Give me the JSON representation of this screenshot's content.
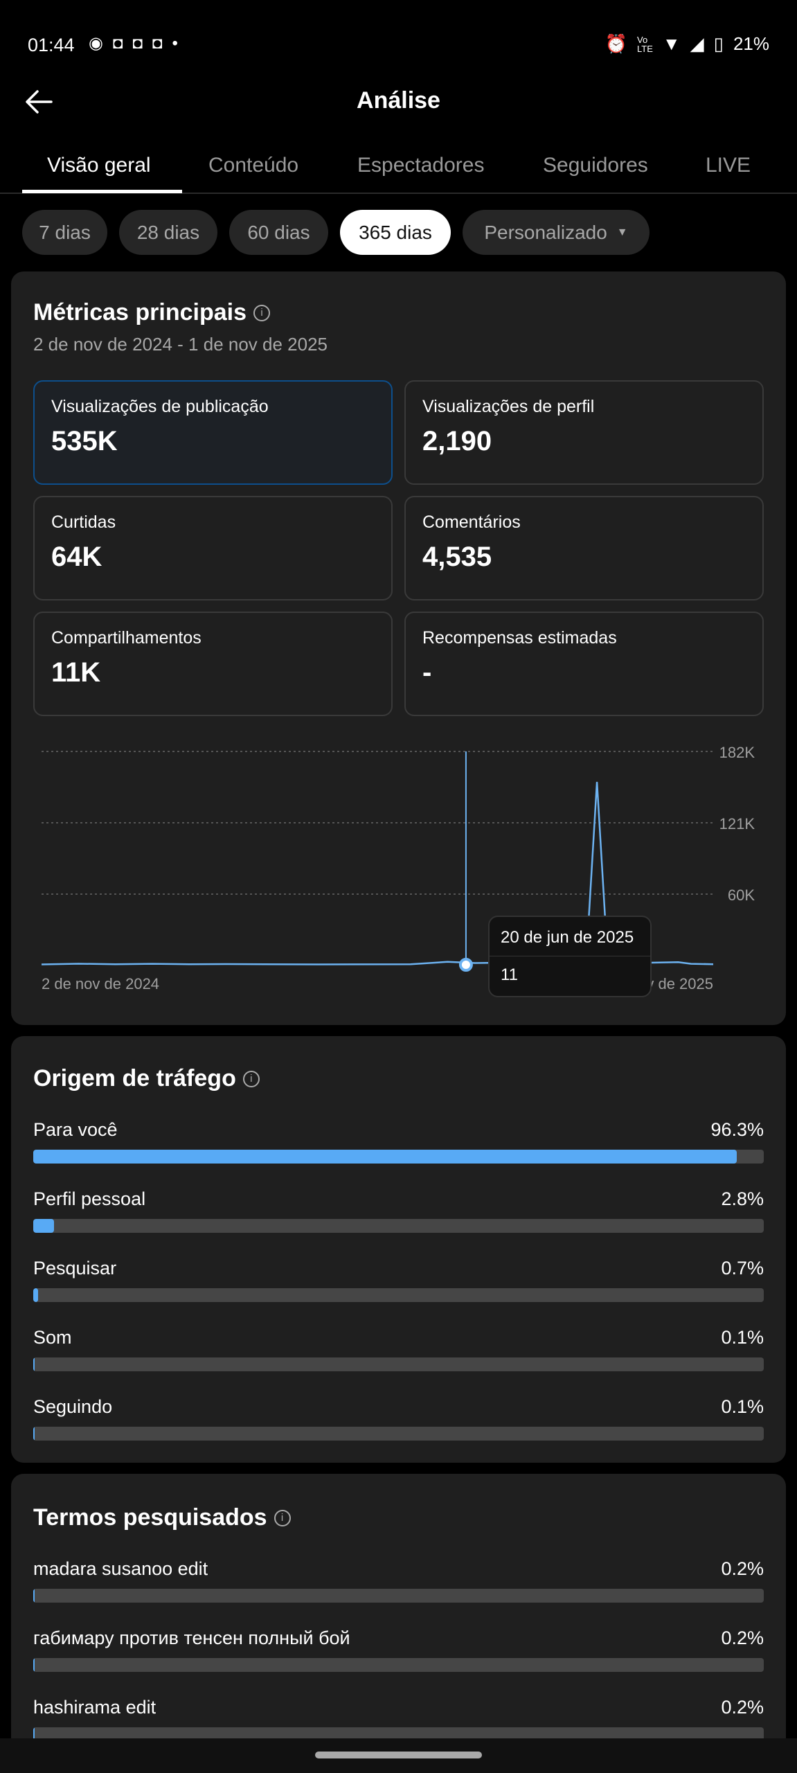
{
  "status_bar": {
    "time": "01:44",
    "battery": "21%",
    "left_icons": [
      "messenger-icon",
      "discord-icon",
      "discord-icon",
      "discord-icon",
      "dot-icon"
    ],
    "right_icons": [
      "alarm-icon",
      "volte-icon",
      "wifi-icon",
      "signal-icon",
      "battery-icon"
    ]
  },
  "header": {
    "title": "Análise",
    "back_icon": "arrow-left-icon"
  },
  "tabs": [
    {
      "label": "Visão geral",
      "active": true
    },
    {
      "label": "Conteúdo"
    },
    {
      "label": "Espectadores"
    },
    {
      "label": "Seguidores"
    },
    {
      "label": "LIVE"
    }
  ],
  "ranges": [
    {
      "label": "7 dias"
    },
    {
      "label": "28 dias"
    },
    {
      "label": "60 dias"
    },
    {
      "label": "365 dias",
      "selected": true
    },
    {
      "label": "Personalizado",
      "dropdown": true
    }
  ],
  "key_metrics": {
    "title": "Métricas principais",
    "date_range": "2 de nov de 2024 - 1 de nov de 2025",
    "items": [
      {
        "label": "Visualizações de publicação",
        "value": "535K",
        "selected": true
      },
      {
        "label": "Visualizações de perfil",
        "value": "2,190"
      },
      {
        "label": "Curtidas",
        "value": "64K"
      },
      {
        "label": "Comentários",
        "value": "4,535"
      },
      {
        "label": "Compartilhamentos",
        "value": "11K"
      },
      {
        "label": "Recompensas estimadas",
        "value": "-"
      }
    ]
  },
  "chart_data": {
    "type": "line",
    "y_ticks": [
      "182K",
      "121K",
      "60K"
    ],
    "ylim": [
      0,
      182000
    ],
    "x_labels": [
      "2 de nov de 2024",
      "1 de nov de 2025"
    ],
    "x_label_visible_end": "de 2025",
    "grid": "dashed horizontal",
    "series_color": "#6db3f2",
    "points": [
      [
        0,
        300
      ],
      [
        20,
        900
      ],
      [
        40,
        500
      ],
      [
        60,
        800
      ],
      [
        80,
        400
      ],
      [
        100,
        600
      ],
      [
        150,
        300
      ],
      [
        200,
        400
      ],
      [
        220,
        2500
      ],
      [
        235,
        1500
      ],
      [
        250,
        1800
      ],
      [
        265,
        300
      ],
      [
        275,
        200
      ],
      [
        290,
        400
      ],
      [
        296,
        25000
      ],
      [
        301,
        156000
      ],
      [
        306,
        25000
      ],
      [
        312,
        2000
      ],
      [
        330,
        1800
      ],
      [
        345,
        2200
      ],
      [
        352,
        800
      ],
      [
        364,
        500
      ]
    ],
    "tooltip": {
      "date": "20 de jun de 2025",
      "value": "11",
      "day_index": 230
    }
  },
  "traffic": {
    "title": "Origem de tráfego",
    "items": [
      {
        "label": "Para você",
        "value": "96.3%",
        "pct": 96.3
      },
      {
        "label": "Perfil pessoal",
        "value": "2.8%",
        "pct": 2.8
      },
      {
        "label": "Pesquisar",
        "value": "0.7%",
        "pct": 0.7
      },
      {
        "label": "Som",
        "value": "0.1%",
        "pct": 0.1
      },
      {
        "label": "Seguindo",
        "value": "0.1%",
        "pct": 0.1
      }
    ]
  },
  "search_terms": {
    "title": "Termos pesquisados",
    "items": [
      {
        "label": "madara susanoo edit",
        "value": "0.2%",
        "pct": 0.2
      },
      {
        "label": "габимару против тенсен полный бой",
        "value": "0.2%",
        "pct": 0.2
      },
      {
        "label": "hashirama edit",
        "value": "0.2%",
        "pct": 0.2
      }
    ]
  }
}
